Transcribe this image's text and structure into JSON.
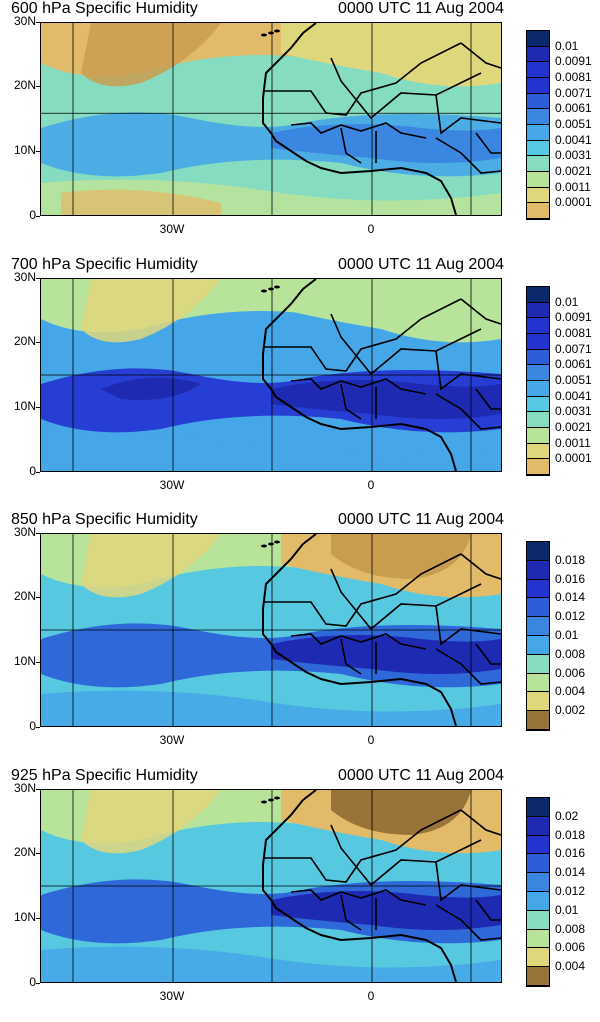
{
  "panels": [
    {
      "title": "600 hPa Specific Humidity",
      "date": "0000 UTC 11 Aug 2004",
      "legend": [
        "0.01",
        "0.0091",
        "0.0081",
        "0.0071",
        "0.0061",
        "0.0051",
        "0.0041",
        "0.0031",
        "0.0021",
        "0.0011",
        "0.0001"
      ],
      "style": "dry"
    },
    {
      "title": "700 hPa Specific Humidity",
      "date": "0000 UTC 11 Aug 2004",
      "legend": [
        "0.01",
        "0.0091",
        "0.0081",
        "0.0071",
        "0.0061",
        "0.0051",
        "0.0041",
        "0.0031",
        "0.0021",
        "0.0011",
        "0.0001"
      ],
      "style": "moist"
    },
    {
      "title": "850 hPa Specific Humidity",
      "date": "0000 UTC 11 Aug 2004",
      "legend": [
        "0.018",
        "0.016",
        "0.014",
        "0.012",
        "0.01",
        "0.008",
        "0.006",
        "0.004",
        "0.002"
      ],
      "style": "moist"
    },
    {
      "title": "925 hPa Specific Humidity",
      "date": "0000 UTC 11 Aug 2004",
      "legend": [
        "0.02",
        "0.018",
        "0.016",
        "0.014",
        "0.012",
        "0.01",
        "0.008",
        "0.006",
        "0.004"
      ],
      "style": "moist"
    }
  ],
  "axes": {
    "y_labels": [
      "30N",
      "20N",
      "10N",
      "0"
    ],
    "x_labels": [
      "30W",
      "0"
    ]
  },
  "colors": [
    "#0c2a6b",
    "#1f2ab3",
    "#2233d0",
    "#2b5ed8",
    "#3a86e0",
    "#45a7e8",
    "#56c8e0",
    "#86dcc0",
    "#b8e39a",
    "#dfd77c",
    "#e1bb6a",
    "#c99d50",
    "#9a7339"
  ]
}
